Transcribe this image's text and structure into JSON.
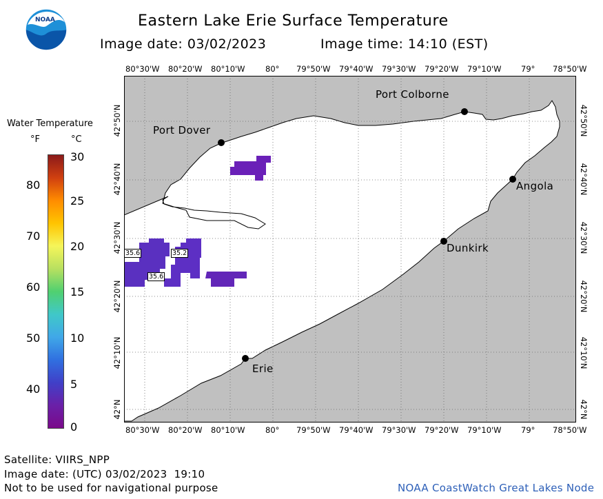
{
  "header": {
    "title": "Eastern Lake Erie Surface Temperature",
    "image_date_label": "Image date: 03/02/2023",
    "image_time_label": "Image time: 14:10 (EST)"
  },
  "logo": {
    "text": "NOAA"
  },
  "legend": {
    "title": "Water Temperature",
    "unit_f": "°F",
    "unit_c": "°C",
    "f_ticks": [
      "80",
      "70",
      "60",
      "50",
      "40"
    ],
    "c_ticks": [
      "30",
      "25",
      "20",
      "15",
      "10",
      "5",
      "0"
    ],
    "colors": [
      "#8b1a1a",
      "#d04010",
      "#ff8c00",
      "#ffc400",
      "#f5f55a",
      "#b8e060",
      "#50d070",
      "#40c8c8",
      "#40a8e8",
      "#3070e0",
      "#4040c8",
      "#6a20a8",
      "#7a0a8a"
    ]
  },
  "map": {
    "lon_labels": [
      "80°30'W",
      "80°20'W",
      "80°10'W",
      "80°",
      "79°50'W",
      "79°40'W",
      "79°30'W",
      "79°20'W",
      "79°10'W",
      "79°",
      "78°50'W"
    ],
    "lat_labels": [
      "42°50'N",
      "42°40'N",
      "42°30'N",
      "42°20'N",
      "42°10'N",
      "42°N"
    ],
    "land_color": "#c0c0c0",
    "water_color": "#ffffff",
    "cities": [
      {
        "name": "Port Colborne"
      },
      {
        "name": "Port Dover"
      },
      {
        "name": "Angola"
      },
      {
        "name": "Dunkirk"
      },
      {
        "name": "Erie"
      }
    ],
    "temp_labels": [
      "35.6",
      "35.2",
      "35.6"
    ]
  },
  "footer": {
    "satellite": "Satellite: VIIRS_NPP",
    "utc_date": "Image date: (UTC) 03/02/2023  19:10",
    "disclaimer": "Not to be used for navigational purpose",
    "credit": "NOAA CoastWatch Great Lakes Node"
  }
}
